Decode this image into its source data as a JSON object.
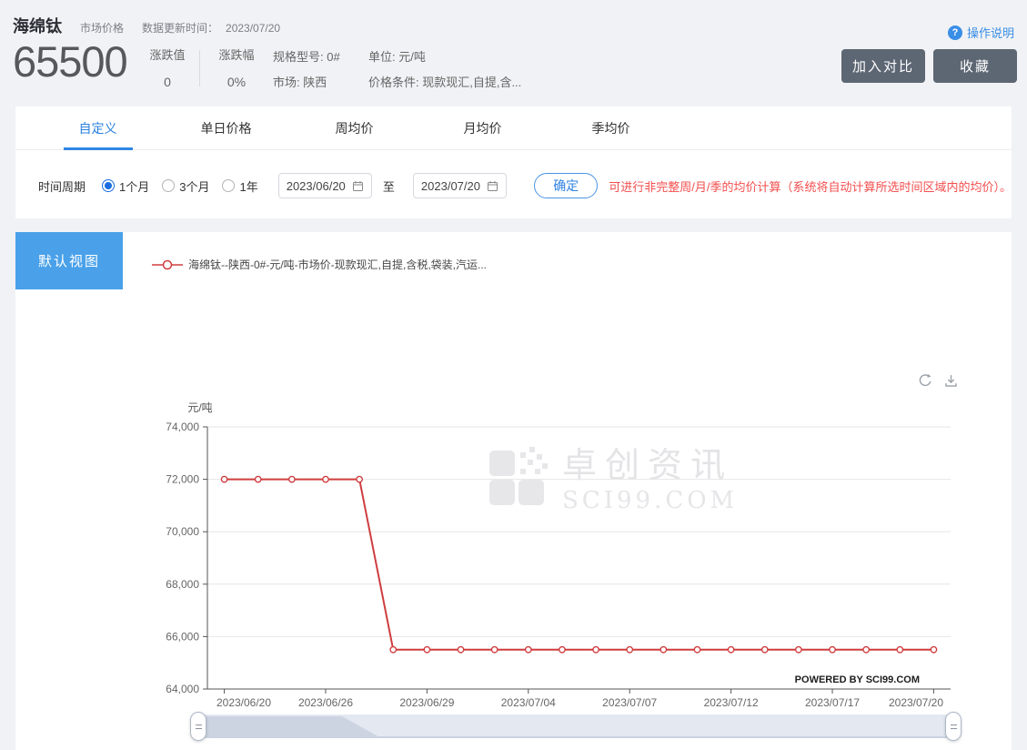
{
  "header": {
    "title": "海绵钛",
    "category": "市场价格",
    "update_label": "数据更新时间：",
    "update_date": "2023/07/20",
    "help_icon": "?",
    "help_label": "操作说明",
    "price": "65500",
    "change": {
      "label": "涨跌值",
      "value": "0"
    },
    "change_pct": {
      "label": "涨跌幅",
      "value": "0%"
    },
    "spec": "规格型号: 0#",
    "market": "市场: 陕西",
    "unit": "单位: 元/吨",
    "price_condition": "价格条件: 现款现汇,自提,含...",
    "compare_button": "加入对比",
    "favorite_button": "收藏"
  },
  "tabs": [
    {
      "label": "自定义",
      "active": true
    },
    {
      "label": "单日价格",
      "active": false
    },
    {
      "label": "周均价",
      "active": false
    },
    {
      "label": "月均价",
      "active": false
    },
    {
      "label": "季均价",
      "active": false
    }
  ],
  "filter": {
    "period_label": "时间周期",
    "periods": [
      {
        "label": "1个月",
        "checked": true
      },
      {
        "label": "3个月",
        "checked": false
      },
      {
        "label": "1年",
        "checked": false
      }
    ],
    "date_from": "2023/06/20",
    "to_label": "至",
    "date_to": "2023/07/20",
    "confirm_button": "确定",
    "hint": "可进行非完整周/月/季的均价计算（系统将自动计算所选时间区域内的均价）。"
  },
  "view": {
    "default_view_button": "默认视图"
  },
  "legend": {
    "series_label": "海绵钛--陕西-0#-元/吨-市场价-现款现汇,自提,含税,袋装,汽运..."
  },
  "watermark": {
    "line1": "卓创资讯",
    "line2": "SCI99.COM"
  },
  "powered_by": "POWERED BY SCI99.COM",
  "colors": {
    "accent_blue": "#3a8ee6",
    "view_button_blue": "#4aa1e9",
    "dark_button_gray": "#5d6673",
    "hint_red": "#f34e4e",
    "line_red": "#cf3d3f"
  },
  "chart_data": {
    "type": "line",
    "series_name": "海绵钛--陕西-0#-元/吨-市场价-现款现汇,自提,含税,袋装,汽运...",
    "unit_label": "元/吨",
    "x": [
      "2023/06/20",
      "2023/06/21",
      "2023/06/25",
      "2023/06/26",
      "2023/06/27",
      "2023/06/28",
      "2023/06/29",
      "2023/06/30",
      "2023/07/03",
      "2023/07/04",
      "2023/07/05",
      "2023/07/06",
      "2023/07/07",
      "2023/07/10",
      "2023/07/11",
      "2023/07/12",
      "2023/07/13",
      "2023/07/14",
      "2023/07/17",
      "2023/07/18",
      "2023/07/19",
      "2023/07/20"
    ],
    "values": [
      72000,
      72000,
      72000,
      72000,
      72000,
      65500,
      65500,
      65500,
      65500,
      65500,
      65500,
      65500,
      65500,
      65500,
      65500,
      65500,
      65500,
      65500,
      65500,
      65500,
      65500,
      65500
    ],
    "ylim": [
      64000,
      74000
    ],
    "y_ticks": [
      64000,
      66000,
      68000,
      70000,
      72000,
      74000
    ],
    "y_tick_labels": [
      "64,000",
      "66,000",
      "68,000",
      "70,000",
      "72,000",
      "74,000"
    ],
    "x_tick_indices": [
      0,
      3,
      6,
      9,
      12,
      15,
      18,
      21
    ],
    "x_tick_labels": [
      "2023/06/20",
      "2023/06/26",
      "2023/06/29",
      "2023/07/04",
      "2023/07/07",
      "2023/07/12",
      "2023/07/17",
      "2023/07/20"
    ],
    "line_color": "#cf3d3f",
    "marker": "hollow-circle",
    "grid": true,
    "legend_position": "top-left"
  }
}
